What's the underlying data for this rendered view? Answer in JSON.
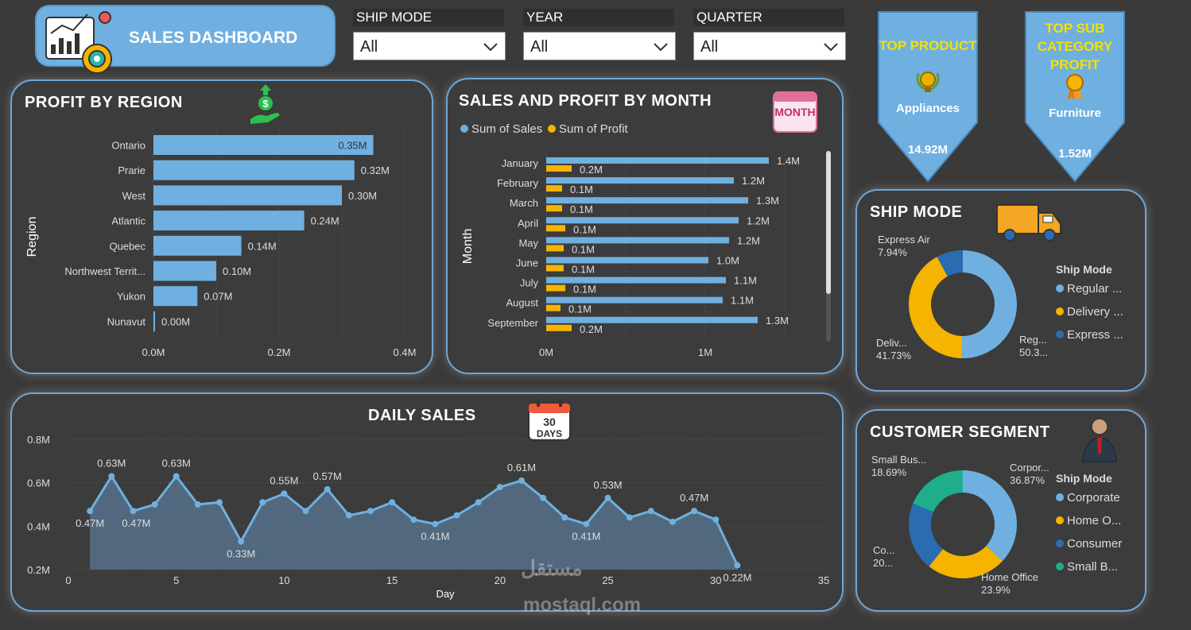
{
  "header": {
    "title": "SALES DASHBOARD",
    "filters": [
      {
        "label": "SHIP MODE",
        "value": "All"
      },
      {
        "label": "YEAR",
        "value": "All"
      },
      {
        "label": "QUARTER",
        "value": "All"
      }
    ]
  },
  "kpis": {
    "top_product": {
      "title_line1": "TOP PRODUCT",
      "name": "Appliances",
      "value": "14.92M"
    },
    "top_subcategory": {
      "title_line1": "TOP SUB",
      "title_line2": "CATEGORY",
      "title_line3": "PROFIT",
      "name": "Furniture",
      "value": "1.52M"
    }
  },
  "colors": {
    "accent": "#6fb0e0",
    "profit": "#f5b400",
    "dark_blue": "#2b6cb0",
    "teal": "#1fae8c",
    "panel_border": "#6fa6d6"
  },
  "panels": {
    "profit_by_region": "PROFIT BY REGION",
    "sales_profit_month": "SALES AND PROFIT BY MONTH",
    "daily_sales": "DAILY SALES",
    "ship_mode": "SHIP MODE",
    "customer_segment": "CUSTOMER SEGMENT"
  },
  "watermark": {
    "arabic": "مستقل",
    "latin": "mostaql.com"
  },
  "chart_data": [
    {
      "id": "profit_by_region",
      "type": "bar",
      "title": "PROFIT BY REGION",
      "ylabel": "Region",
      "categories": [
        "Ontario",
        "Prarie",
        "West",
        "Atlantic",
        "Quebec",
        "Northwest Territ...",
        "Yukon",
        "Nunavut"
      ],
      "values": [
        0.35,
        0.32,
        0.3,
        0.24,
        0.14,
        0.1,
        0.07,
        0.0
      ],
      "labels": [
        "0.35M",
        "0.32M",
        "0.30M",
        "0.24M",
        "0.14M",
        "0.10M",
        "0.07M",
        "0.00M"
      ],
      "xticks": [
        "0.0M",
        "0.2M",
        "0.4M"
      ],
      "xlim": [
        0,
        0.4
      ]
    },
    {
      "id": "sales_profit_month",
      "type": "bar",
      "title": "SALES AND PROFIT BY MONTH",
      "ylabel": "Month",
      "categories": [
        "January",
        "February",
        "March",
        "April",
        "May",
        "June",
        "July",
        "August",
        "September"
      ],
      "series": [
        {
          "name": "Sum of Sales",
          "values": [
            1.4,
            1.18,
            1.27,
            1.21,
            1.15,
            1.02,
            1.13,
            1.11,
            1.33
          ],
          "labels": [
            "1.4M",
            "1.2M",
            "1.3M",
            "1.2M",
            "1.2M",
            "1.0M",
            "1.1M",
            "1.1M",
            "1.3M"
          ]
        },
        {
          "name": "Sum of Profit",
          "values": [
            0.16,
            0.1,
            0.1,
            0.12,
            0.11,
            0.11,
            0.12,
            0.09,
            0.16
          ],
          "labels": [
            "0.2M",
            "0.1M",
            "0.1M",
            "0.1M",
            "0.1M",
            "0.1M",
            "0.1M",
            "0.1M",
            "0.2M"
          ]
        }
      ],
      "xticks": [
        "0M",
        "1M"
      ],
      "xlim": [
        0,
        1.5
      ]
    },
    {
      "id": "daily_sales",
      "type": "area",
      "title": "DAILY SALES",
      "xlabel": "Day",
      "x": [
        1,
        2,
        3,
        4,
        5,
        6,
        7,
        8,
        9,
        10,
        11,
        12,
        13,
        14,
        15,
        16,
        17,
        18,
        19,
        20,
        21,
        22,
        23,
        24,
        25,
        26,
        27,
        28,
        29,
        30,
        31
      ],
      "y": [
        0.47,
        0.63,
        0.47,
        0.5,
        0.63,
        0.5,
        0.51,
        0.33,
        0.51,
        0.55,
        0.47,
        0.57,
        0.45,
        0.47,
        0.51,
        0.43,
        0.41,
        0.45,
        0.51,
        0.58,
        0.61,
        0.53,
        0.44,
        0.41,
        0.53,
        0.44,
        0.47,
        0.42,
        0.47,
        0.43,
        0.22
      ],
      "point_labels": [
        {
          "x": 1,
          "text": "0.47M"
        },
        {
          "x": 2,
          "text": "0.63M"
        },
        {
          "x": 3,
          "text": "0.47M"
        },
        {
          "x": 5,
          "text": "0.63M"
        },
        {
          "x": 8,
          "text": "0.33M"
        },
        {
          "x": 10,
          "text": "0.55M"
        },
        {
          "x": 12,
          "text": "0.57M"
        },
        {
          "x": 17,
          "text": "0.41M"
        },
        {
          "x": 21,
          "text": "0.61M"
        },
        {
          "x": 24,
          "text": "0.41M"
        },
        {
          "x": 25,
          "text": "0.53M"
        },
        {
          "x": 29,
          "text": "0.47M"
        },
        {
          "x": 31,
          "text": "0.22M"
        }
      ],
      "xticks": [
        0,
        5,
        10,
        15,
        20,
        25,
        30,
        35
      ],
      "yticks": [
        "0.2M",
        "0.4M",
        "0.6M",
        "0.8M"
      ],
      "xlim": [
        0,
        35
      ],
      "ylim": [
        0.2,
        0.8
      ]
    },
    {
      "id": "ship_mode",
      "type": "pie",
      "title": "SHIP MODE",
      "legend_title": "Ship Mode",
      "slices": [
        {
          "name": "Regular ...",
          "value": 50.33,
          "label_name": "Reg...",
          "label_pct": "50.3...",
          "color": "#6fb0e0"
        },
        {
          "name": "Delivery ...",
          "value": 41.73,
          "label_name": "Deliv...",
          "label_pct": "41.73%",
          "color": "#f5b400"
        },
        {
          "name": "Express ...",
          "value": 7.94,
          "label_name": "Express Air",
          "label_pct": "7.94%",
          "color": "#2b6cb0"
        }
      ]
    },
    {
      "id": "customer_segment",
      "type": "pie",
      "title": "CUSTOMER SEGMENT",
      "legend_title": "Ship Mode",
      "slices": [
        {
          "name": "Corporate",
          "value": 36.87,
          "label_name": "Corpor...",
          "label_pct": "36.87%",
          "color": "#6fb0e0"
        },
        {
          "name": "Home O...",
          "value": 23.9,
          "label_name": "Home Office",
          "label_pct": "23.9%",
          "color": "#f5b400"
        },
        {
          "name": "Consumer",
          "value": 20.54,
          "label_name": "Co...",
          "label_pct": "20...",
          "color": "#2b6cb0"
        },
        {
          "name": "Small B...",
          "value": 18.69,
          "label_name": "Small Bus...",
          "label_pct": "18.69%",
          "color": "#1fae8c"
        }
      ]
    }
  ]
}
